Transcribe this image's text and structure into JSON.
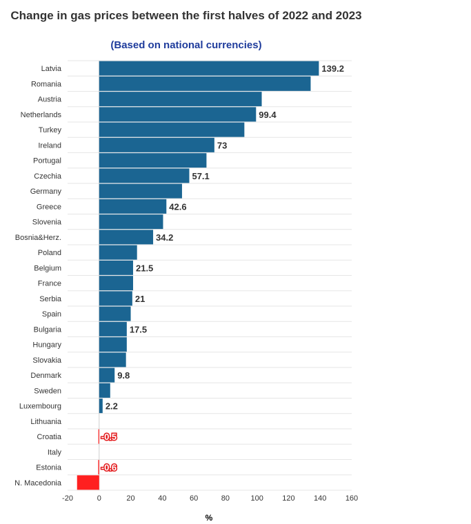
{
  "chart_data": {
    "type": "bar",
    "orientation": "horizontal",
    "title": "Change in gas prices between the first halves of 2022 and 2023",
    "subtitle": "(Based on national currencies)",
    "xlabel": "%",
    "ylabel": "",
    "xlim": [
      -20,
      160
    ],
    "xticks": [
      -20,
      0,
      20,
      40,
      60,
      80,
      100,
      120,
      140,
      160
    ],
    "grid": true,
    "colors": {
      "positive": "#1b6592",
      "negative": "#ff2020"
    },
    "categories": [
      "Latvia",
      "Romania",
      "Austria",
      "Netherlands",
      "Turkey",
      "Ireland",
      "Portugal",
      "Czechia",
      "Germany",
      "Greece",
      "Slovenia",
      "Bosnia&Herz.",
      "Poland",
      "Belgium",
      "France",
      "Serbia",
      "Spain",
      "Bulgaria",
      "Hungary",
      "Slovakia",
      "Denmark",
      "Sweden",
      "Luxembourg",
      "Lithuania",
      "Croatia",
      "Italy",
      "Estonia",
      "N. Macedonia"
    ],
    "values": [
      139.2,
      134,
      103,
      99.4,
      92,
      73,
      68,
      57.1,
      52.5,
      42.6,
      40.5,
      34.2,
      24,
      21.5,
      21.5,
      21,
      20,
      17.5,
      17.5,
      17,
      9.8,
      7,
      2.2,
      0,
      -0.5,
      0,
      -0.6,
      -14
    ],
    "data_labels": [
      "139.2",
      "",
      "",
      "99.4",
      "",
      "73",
      "",
      "57.1",
      "",
      "42.6",
      "",
      "34.2",
      "",
      "21.5",
      "",
      "21",
      "",
      "17.5",
      "",
      "",
      "9.8",
      "",
      "2.2",
      "",
      "-0.5",
      "",
      "-0.6",
      ""
    ]
  }
}
